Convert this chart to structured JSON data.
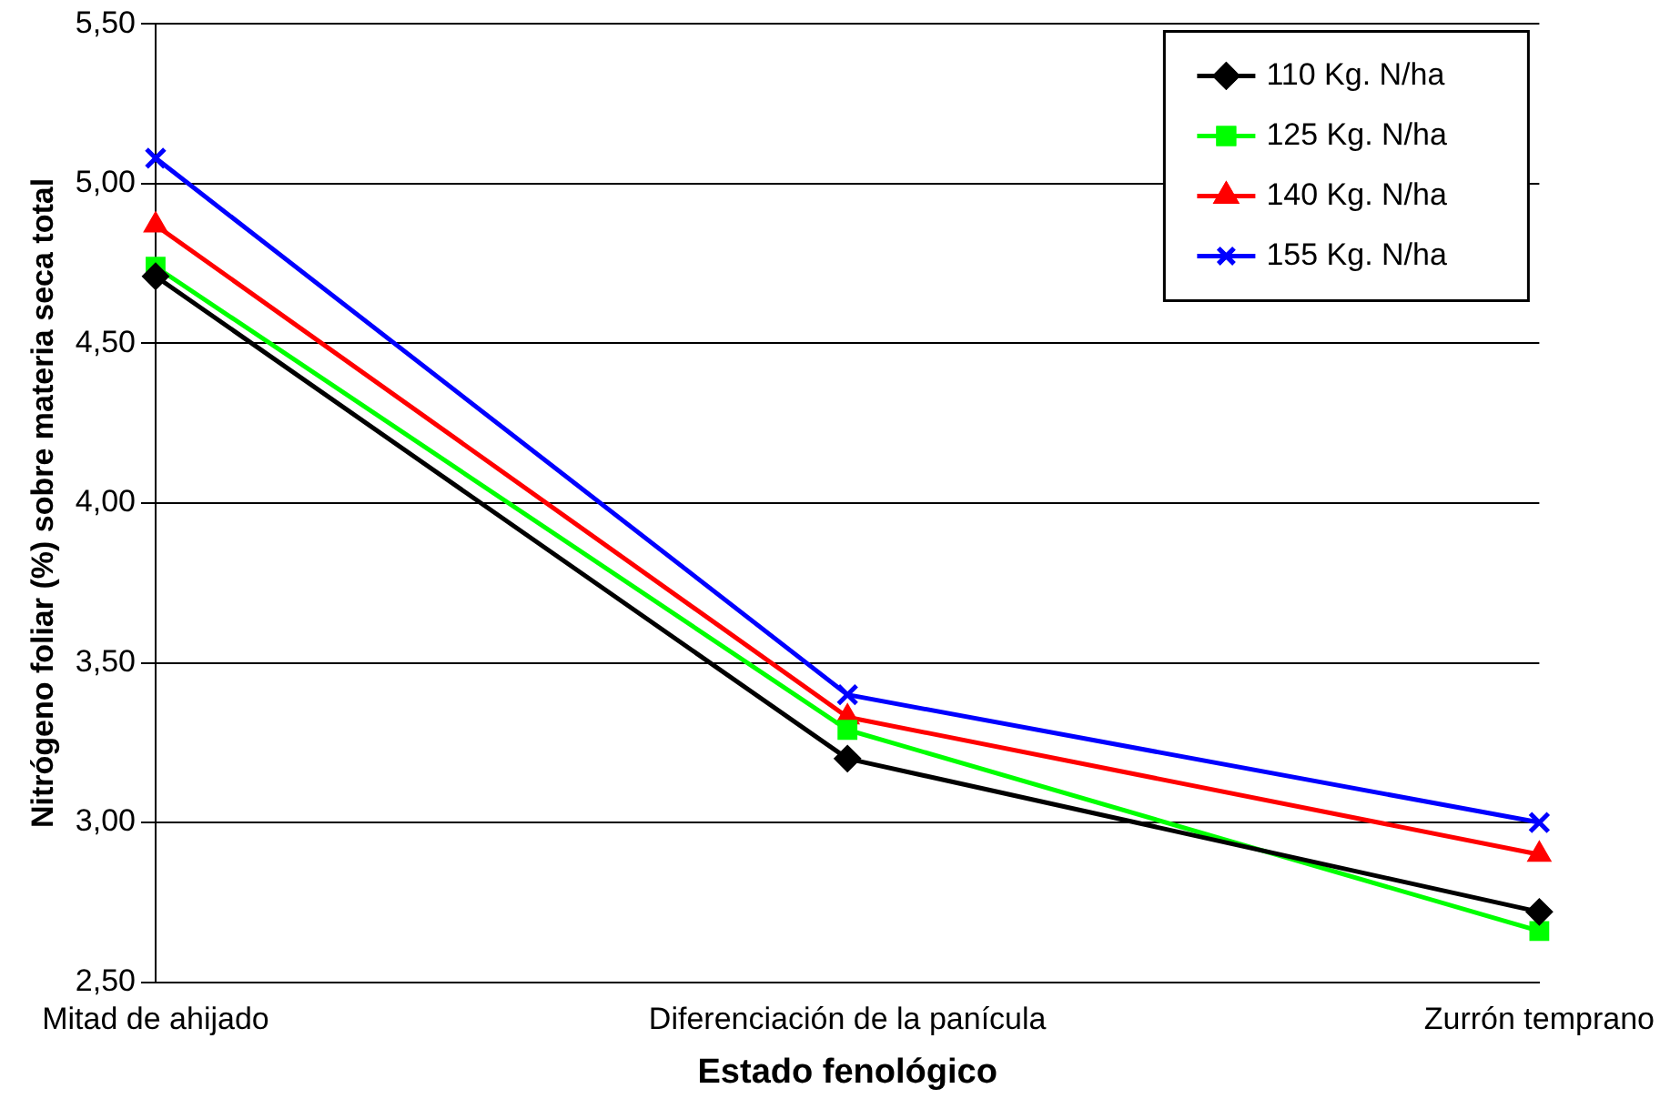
{
  "chart_data": {
    "type": "line",
    "xlabel": "Estado fenológico",
    "ylabel": "Nitrógeno foliar (%) sobre materia seca total",
    "categories": [
      "Mitad de ahijado",
      "Diferenciación de la panícula",
      "Zurrón temprano"
    ],
    "series": [
      {
        "name": "110 Kg. N/ha",
        "color": "#000000",
        "marker": "diamond",
        "values": [
          4.71,
          3.2,
          2.72
        ]
      },
      {
        "name": "125 Kg. N/ha",
        "color": "#00ff00",
        "marker": "square",
        "values": [
          4.74,
          3.29,
          2.66
        ]
      },
      {
        "name": "140 Kg. N/ha",
        "color": "#ff0000",
        "marker": "triangle",
        "values": [
          4.87,
          3.33,
          2.9
        ]
      },
      {
        "name": "155 Kg. N/ha",
        "color": "#0000ff",
        "marker": "cross",
        "values": [
          5.08,
          3.4,
          3.0
        ]
      }
    ],
    "ylim": [
      2.5,
      5.5
    ],
    "yticks": [
      {
        "value": 2.5,
        "label": "2,50"
      },
      {
        "value": 3,
        "label": "3,00"
      },
      {
        "value": 3.5,
        "label": "3,50"
      },
      {
        "value": 4,
        "label": "4,00"
      },
      {
        "value": 4.5,
        "label": "4,50"
      },
      {
        "value": 5,
        "label": "5,00"
      },
      {
        "value": 5.5,
        "label": "5,50"
      }
    ],
    "grid": "y",
    "legend": "top right",
    "line_style": "solid"
  }
}
